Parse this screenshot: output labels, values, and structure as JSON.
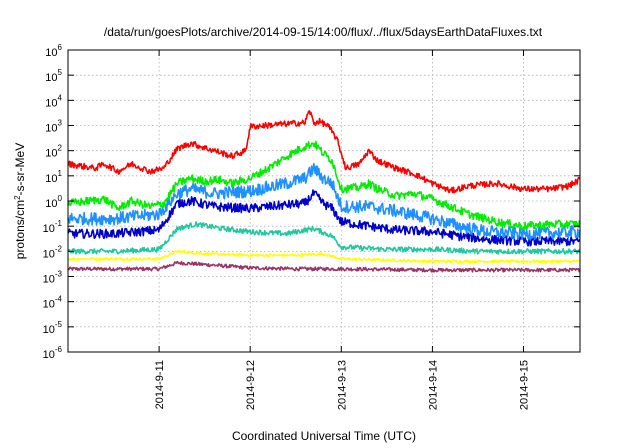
{
  "chart_data": {
    "type": "line",
    "title": "/data/run/goesPlots/archive/2014-09-15/14:00/flux/../flux/5daysEarthDataFluxes.txt",
    "xlabel": "Coordinated Universal Time (UTC)",
    "ylabel_parts": {
      "pre": "protons/cm",
      "sup": "2",
      "post": "-s-sr-MeV"
    },
    "yscale": "log",
    "ylim_exp": [
      -6,
      6
    ],
    "xlim_days": [
      10.0,
      15.62
    ],
    "x_ticks": [
      {
        "day": 11,
        "label": "2014-9-11"
      },
      {
        "day": 12,
        "label": "2014-9-12"
      },
      {
        "day": 13,
        "label": "2014-9-13"
      },
      {
        "day": 14,
        "label": "2014-9-14"
      },
      {
        "day": 15,
        "label": "2014-9-15"
      }
    ],
    "y_ticks": [
      {
        "exp": 6,
        "base": "10",
        "sup": "6"
      },
      {
        "exp": 5,
        "base": "10",
        "sup": "5"
      },
      {
        "exp": 4,
        "base": "10",
        "sup": "4"
      },
      {
        "exp": 3,
        "base": "10",
        "sup": "3"
      },
      {
        "exp": 2,
        "base": "10",
        "sup": "2"
      },
      {
        "exp": 1,
        "base": "10",
        "sup": "1"
      },
      {
        "exp": 0,
        "base": "10",
        "sup": "0"
      },
      {
        "exp": -1,
        "base": "10",
        "sup": "-1"
      },
      {
        "exp": -2,
        "base": "10",
        "sup": "-2"
      },
      {
        "exp": -3,
        "base": "10",
        "sup": "-3"
      },
      {
        "exp": -4,
        "base": "10",
        "sup": "-4"
      },
      {
        "exp": -5,
        "base": "10",
        "sup": "-5"
      },
      {
        "exp": -6,
        "base": "10",
        "sup": "-6"
      }
    ],
    "grid": true,
    "series": [
      {
        "color": "#ff0000",
        "noise": 0.12,
        "x": [
          10.0,
          10.3,
          10.4,
          10.55,
          10.7,
          10.9,
          11.05,
          11.2,
          11.35,
          11.5,
          11.65,
          11.8,
          11.95,
          12.0,
          12.3,
          12.6,
          12.65,
          12.7,
          12.75,
          12.85,
          12.95,
          13.05,
          13.2,
          13.3,
          13.4,
          13.6,
          13.8,
          14.0,
          14.2,
          14.4,
          14.7,
          15.0,
          15.3,
          15.5,
          15.62
        ],
        "y": [
          30,
          20,
          30,
          15,
          30,
          15,
          20,
          120,
          200,
          130,
          90,
          60,
          100,
          900,
          1100,
          1300,
          4000,
          1200,
          1500,
          1000,
          300,
          20,
          30,
          100,
          40,
          20,
          12,
          5,
          2.5,
          4,
          5,
          3,
          3,
          4,
          7
        ]
      },
      {
        "color": "#00ee00",
        "noise": 0.16,
        "x": [
          10.0,
          10.4,
          10.55,
          10.7,
          10.9,
          11.05,
          11.2,
          11.35,
          11.5,
          11.65,
          11.8,
          12.0,
          12.2,
          12.4,
          12.6,
          12.7,
          12.8,
          12.9,
          13.0,
          13.2,
          13.3,
          13.4,
          13.6,
          13.8,
          14.0,
          14.2,
          14.4,
          14.7,
          15.0,
          15.3,
          15.62
        ],
        "y": [
          0.8,
          1.2,
          0.5,
          1.0,
          0.6,
          0.8,
          5,
          8,
          6,
          7,
          5,
          8,
          20,
          60,
          150,
          200,
          80,
          40,
          3,
          3.5,
          5,
          3,
          1.6,
          2,
          1.2,
          0.6,
          0.3,
          0.15,
          0.1,
          0.12,
          0.12
        ]
      },
      {
        "color": "#1e90ff",
        "noise": 0.25,
        "x": [
          10.0,
          10.5,
          11.0,
          11.2,
          11.35,
          11.6,
          12.0,
          12.4,
          12.6,
          12.7,
          12.8,
          12.9,
          13.0,
          13.3,
          13.6,
          14.0,
          14.3,
          14.6,
          15.0,
          15.62
        ],
        "y": [
          0.2,
          0.2,
          0.3,
          2,
          3,
          2,
          2.5,
          5,
          8,
          20,
          8,
          5,
          0.6,
          0.6,
          0.4,
          0.2,
          0.1,
          0.06,
          0.05,
          0.06
        ]
      },
      {
        "color": "#0000cc",
        "noise": 0.18,
        "x": [
          10.0,
          10.5,
          11.0,
          11.2,
          11.35,
          11.6,
          12.0,
          12.4,
          12.6,
          12.7,
          12.8,
          12.9,
          13.0,
          13.3,
          13.6,
          14.0,
          14.3,
          14.6,
          15.0,
          15.62
        ],
        "y": [
          0.05,
          0.05,
          0.07,
          0.8,
          1.0,
          0.6,
          0.5,
          0.7,
          0.8,
          2,
          0.8,
          0.5,
          0.15,
          0.1,
          0.07,
          0.06,
          0.04,
          0.03,
          0.025,
          0.025
        ]
      },
      {
        "color": "#20c8a0",
        "noise": 0.1,
        "x": [
          10.0,
          10.5,
          11.0,
          11.2,
          11.4,
          11.7,
          12.0,
          12.4,
          12.6,
          12.7,
          12.9,
          13.0,
          13.5,
          14.0,
          14.5,
          15.0,
          15.62
        ],
        "y": [
          0.01,
          0.01,
          0.012,
          0.08,
          0.12,
          0.08,
          0.06,
          0.05,
          0.07,
          0.08,
          0.04,
          0.015,
          0.012,
          0.012,
          0.01,
          0.01,
          0.01
        ]
      },
      {
        "color": "#ffff00",
        "noise": 0.05,
        "x": [
          10.0,
          11.0,
          11.2,
          11.5,
          12.0,
          12.5,
          12.8,
          13.0,
          14.0,
          15.0,
          15.62
        ],
        "y": [
          0.005,
          0.005,
          0.01,
          0.008,
          0.007,
          0.007,
          0.008,
          0.005,
          0.004,
          0.004,
          0.004
        ]
      },
      {
        "color": "#993366",
        "noise": 0.07,
        "x": [
          10.0,
          11.0,
          11.2,
          11.5,
          12.0,
          12.5,
          13.0,
          14.0,
          15.0,
          15.62
        ],
        "y": [
          0.002,
          0.002,
          0.0035,
          0.003,
          0.0022,
          0.002,
          0.002,
          0.0018,
          0.0018,
          0.0018
        ]
      }
    ]
  }
}
